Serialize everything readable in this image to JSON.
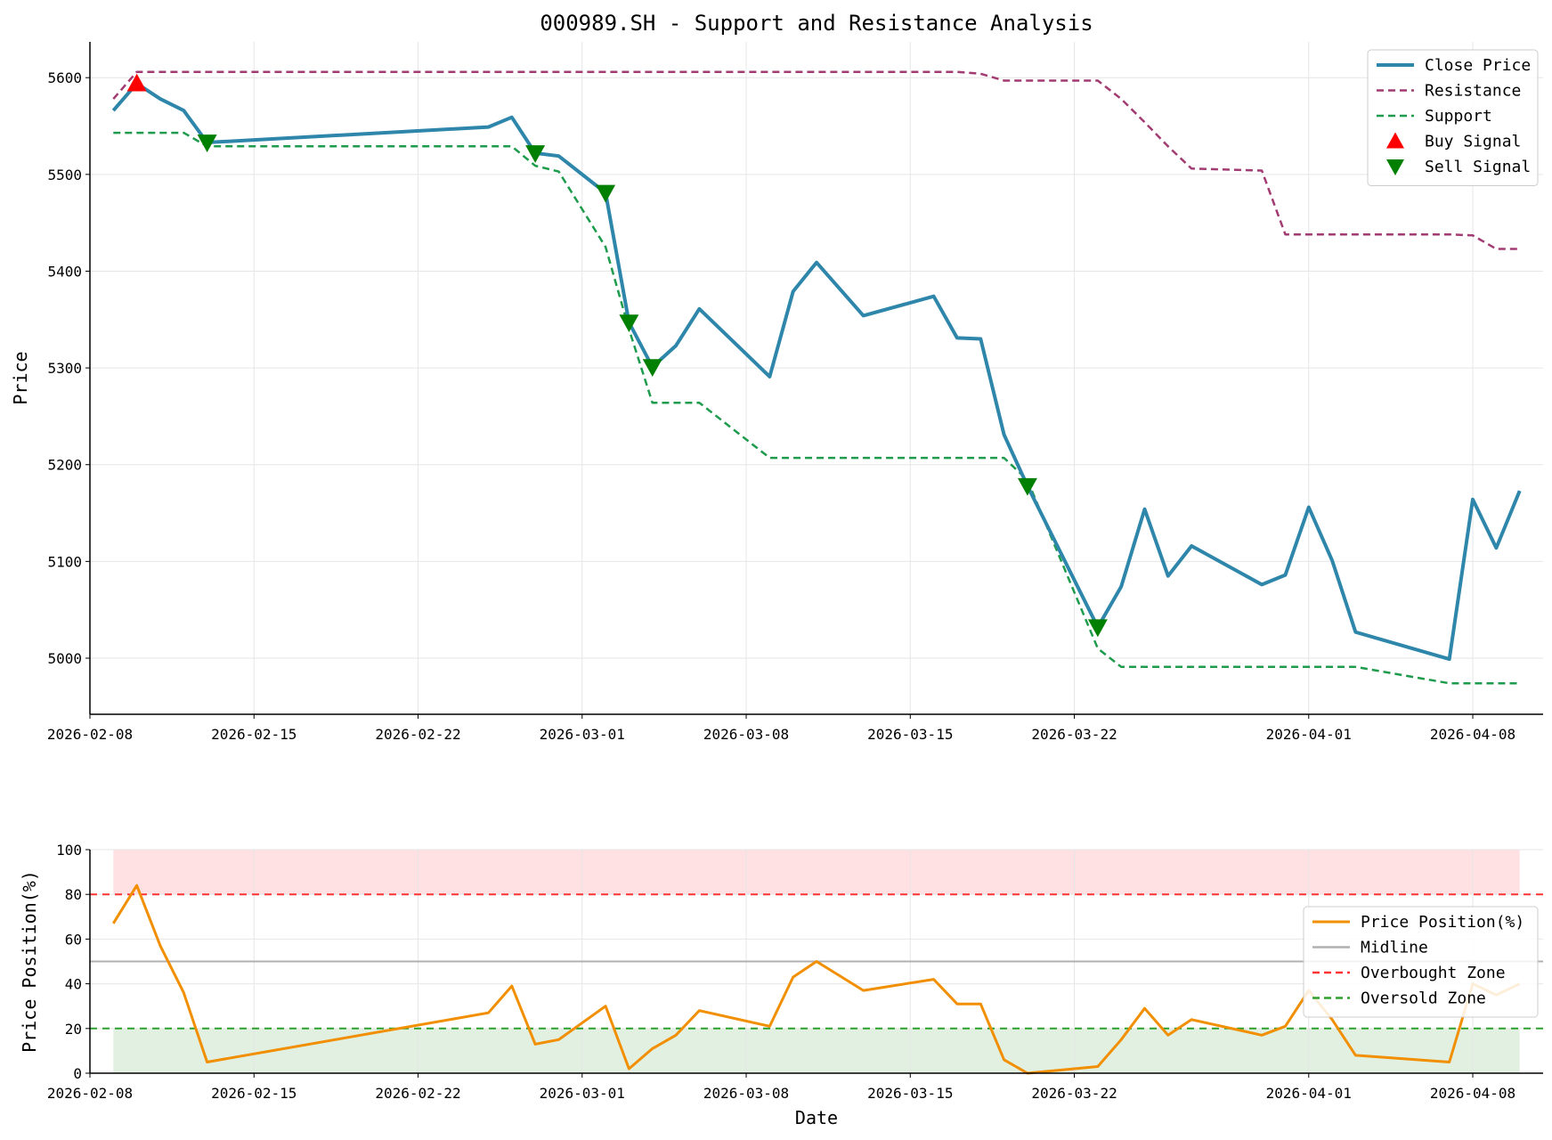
{
  "colors": {
    "close": "#2e86ab",
    "resistance": "#a23b72",
    "support": "#1e9b4c",
    "buy": "#ff0000",
    "sell": "#008000",
    "position": "#f18f01",
    "midline": "#b0b0b0",
    "overbought": "#ff3333",
    "oversold": "#2ca02c",
    "overbought_fill": "#ffe0e3",
    "oversold_fill": "#e2f0e2"
  },
  "chart_data": [
    {
      "type": "line",
      "title": "000989.SH - Support and Resistance Analysis",
      "xlabel": "",
      "ylabel": "Price",
      "xlim": [
        "2026-02-08",
        "2026-04-11"
      ],
      "ylim": [
        4942,
        5637
      ],
      "grid": true,
      "legend_position": "top-right",
      "x_ticks": [
        "2026-02-08",
        "2026-02-15",
        "2026-02-22",
        "2026-03-01",
        "2026-03-08",
        "2026-03-15",
        "2026-03-22",
        "2026-04-01",
        "2026-04-08"
      ],
      "y_ticks": [
        5000,
        5100,
        5200,
        5300,
        5400,
        5500,
        5600
      ],
      "x": [
        "2026-02-09",
        "2026-02-10",
        "2026-02-11",
        "2026-02-12",
        "2026-02-13",
        "2026-02-25",
        "2026-02-26",
        "2026-02-27",
        "2026-02-28",
        "2026-03-02",
        "2026-03-03",
        "2026-03-04",
        "2026-03-05",
        "2026-03-06",
        "2026-03-09",
        "2026-03-10",
        "2026-03-11",
        "2026-03-13",
        "2026-03-16",
        "2026-03-17",
        "2026-03-18",
        "2026-03-19",
        "2026-03-20",
        "2026-03-23",
        "2026-03-24",
        "2026-03-25",
        "2026-03-26",
        "2026-03-27",
        "2026-03-30",
        "2026-03-31",
        "2026-04-01",
        "2026-04-02",
        "2026-04-03",
        "2026-04-07",
        "2026-04-08",
        "2026-04-09",
        "2026-04-10"
      ],
      "series": [
        {
          "name": "Close Price",
          "style": "solid",
          "values": [
            5566,
            5594,
            5578,
            5566,
            5533,
            5549,
            5559,
            5522,
            5519,
            5481,
            5347,
            5301,
            5323,
            5361,
            5291,
            5379,
            5409,
            5354,
            5374,
            5331,
            5330,
            5231,
            5178,
            5032,
            5074,
            5154,
            5085,
            5116,
            5076,
            5086,
            5156,
            5101,
            5027,
            4999,
            5164,
            5114,
            5173
          ]
        },
        {
          "name": "Resistance",
          "style": "dashed",
          "values": [
            5578,
            5606,
            5606,
            5606,
            5606,
            5606,
            5606,
            5606,
            5606,
            5606,
            5606,
            5606,
            5606,
            5606,
            5606,
            5606,
            5606,
            5606,
            5606,
            5606,
            5604,
            5597,
            5597,
            5597,
            5578,
            5554,
            5529,
            5506,
            5504,
            5438,
            5438,
            5438,
            5438,
            5438,
            5437,
            5423,
            5423
          ]
        },
        {
          "name": "Support",
          "style": "dashed",
          "values": [
            5543,
            5543,
            5543,
            5543,
            5529,
            5529,
            5529,
            5509,
            5503,
            5425,
            5340,
            5264,
            5264,
            5264,
            5207,
            5207,
            5207,
            5207,
            5207,
            5207,
            5207,
            5207,
            5184,
            5010,
            4991,
            4991,
            4991,
            4991,
            4991,
            4991,
            4991,
            4991,
            4991,
            4974,
            4974,
            4974,
            4974
          ]
        }
      ],
      "buy_signals": [
        {
          "x": "2026-02-10",
          "y": 5594
        }
      ],
      "sell_signals": [
        {
          "x": "2026-02-13",
          "y": 5533
        },
        {
          "x": "2026-02-27",
          "y": 5522
        },
        {
          "x": "2026-03-02",
          "y": 5481
        },
        {
          "x": "2026-03-03",
          "y": 5347
        },
        {
          "x": "2026-03-04",
          "y": 5301
        },
        {
          "x": "2026-03-20",
          "y": 5178
        },
        {
          "x": "2026-03-23",
          "y": 5032
        }
      ],
      "legend": [
        "Close Price",
        "Resistance",
        "Support",
        "Buy Signal",
        "Sell Signal"
      ]
    },
    {
      "type": "line",
      "title": "",
      "xlabel": "Date",
      "ylabel": "Price Position(%)",
      "xlim": [
        "2026-02-08",
        "2026-04-11"
      ],
      "ylim": [
        0,
        100
      ],
      "grid": true,
      "legend_position": "right",
      "x_ticks": [
        "2026-02-08",
        "2026-02-15",
        "2026-02-22",
        "2026-03-01",
        "2026-03-08",
        "2026-03-15",
        "2026-03-22",
        "2026-04-01",
        "2026-04-08"
      ],
      "y_ticks": [
        0,
        20,
        40,
        60,
        80,
        100
      ],
      "x": [
        "2026-02-09",
        "2026-02-10",
        "2026-02-11",
        "2026-02-12",
        "2026-02-13",
        "2026-02-25",
        "2026-02-26",
        "2026-02-27",
        "2026-02-28",
        "2026-03-02",
        "2026-03-03",
        "2026-03-04",
        "2026-03-05",
        "2026-03-06",
        "2026-03-09",
        "2026-03-10",
        "2026-03-11",
        "2026-03-13",
        "2026-03-16",
        "2026-03-17",
        "2026-03-18",
        "2026-03-19",
        "2026-03-20",
        "2026-03-23",
        "2026-03-24",
        "2026-03-25",
        "2026-03-26",
        "2026-03-27",
        "2026-03-30",
        "2026-03-31",
        "2026-04-01",
        "2026-04-02",
        "2026-04-03",
        "2026-04-07",
        "2026-04-08",
        "2026-04-09",
        "2026-04-10"
      ],
      "series": [
        {
          "name": "Price Position(%)",
          "values": [
            67,
            84,
            57,
            36,
            5,
            27,
            39,
            13,
            15,
            30,
            2,
            11,
            17,
            28,
            21,
            43,
            50,
            37,
            42,
            31,
            31,
            6,
            0,
            3,
            15,
            29,
            17,
            24,
            17,
            21,
            37,
            24,
            8,
            5,
            40,
            35,
            40
          ]
        }
      ],
      "lines": [
        {
          "name": "Midline",
          "y": 50
        },
        {
          "name": "Overbought Zone",
          "y": 80
        },
        {
          "name": "Oversold Zone",
          "y": 20
        }
      ],
      "shaded_zones": [
        {
          "from": 80,
          "to": 100,
          "color": "overbought"
        },
        {
          "from": 0,
          "to": 20,
          "color": "oversold"
        }
      ],
      "legend": [
        "Price Position(%)",
        "Midline",
        "Overbought Zone",
        "Oversold Zone"
      ]
    }
  ]
}
